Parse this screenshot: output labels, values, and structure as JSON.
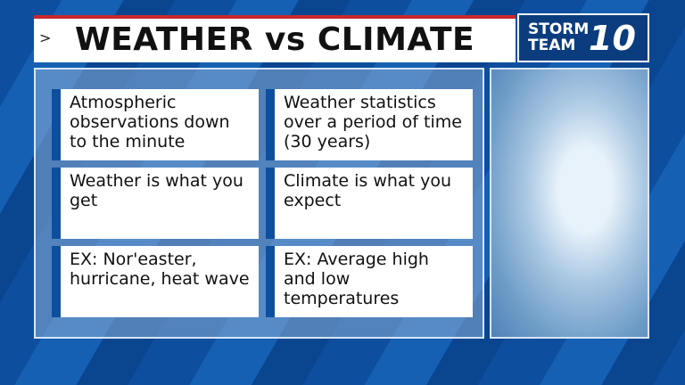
{
  "header": {
    "arrow": ">",
    "title": "WEATHER vs CLIMATE"
  },
  "logo": {
    "line1": "STORM",
    "line2": "TEAM",
    "number": "10"
  },
  "table": {
    "rows": [
      [
        "Atmospheric observations down to the minute",
        "Weather statistics over a period of time (30 years)"
      ],
      [
        "Weather is what you get",
        "Climate is what you expect"
      ],
      [
        "EX: Nor'easter, hurricane, heat wave",
        "EX: Average high and low temperatures"
      ]
    ]
  }
}
